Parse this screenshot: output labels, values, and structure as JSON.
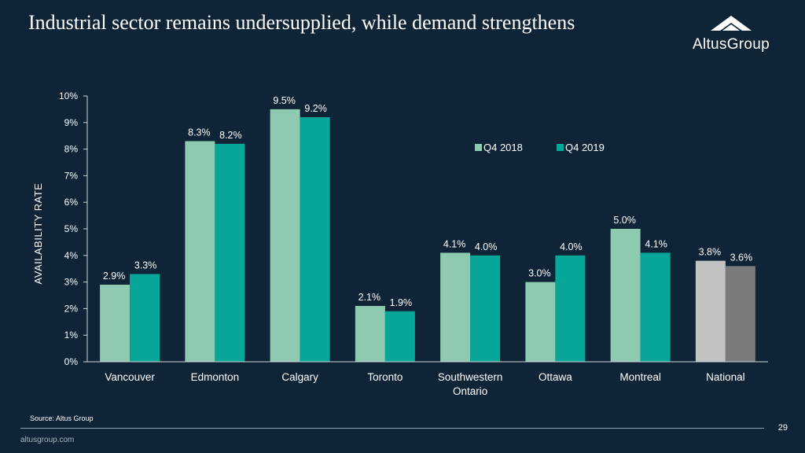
{
  "title": "Industrial sector remains undersupplied, while demand strengthens",
  "logo": {
    "text": "AltusGroup"
  },
  "chart_data": {
    "type": "bar",
    "ylabel": "AVAILABILITY RATE",
    "ylim": [
      0,
      10
    ],
    "yticks": [
      "0%",
      "1%",
      "2%",
      "3%",
      "4%",
      "5%",
      "6%",
      "7%",
      "8%",
      "9%",
      "10%"
    ],
    "categories": [
      "Vancouver",
      "Edmonton",
      "Calgary",
      "Toronto",
      "Southwestern Ontario",
      "Ottawa",
      "Montreal",
      "National"
    ],
    "category_lines": [
      [
        "Vancouver"
      ],
      [
        "Edmonton"
      ],
      [
        "Calgary"
      ],
      [
        "Toronto"
      ],
      [
        "Southwestern",
        "Ontario"
      ],
      [
        "Ottawa"
      ],
      [
        "Montreal"
      ],
      [
        "National"
      ]
    ],
    "series": [
      {
        "name": "Q4 2018",
        "color": "#8ecab0",
        "values": [
          2.9,
          8.3,
          9.5,
          2.1,
          4.1,
          3.0,
          5.0,
          3.8
        ],
        "labels": [
          "2.9%",
          "8.3%",
          "9.5%",
          "2.1%",
          "4.1%",
          "3.0%",
          "5.0%",
          "3.8%"
        ]
      },
      {
        "name": "Q4 2019",
        "color": "#07a699",
        "values": [
          3.3,
          8.2,
          9.2,
          1.9,
          4.0,
          4.0,
          4.1,
          3.6
        ],
        "labels": [
          "3.3%",
          "8.2%",
          "9.2%",
          "1.9%",
          "4.0%",
          "4.0%",
          "4.1%",
          "3.6%"
        ]
      }
    ],
    "highlight": {
      "category": "National",
      "colors": [
        "#c2c2c2",
        "#7b7b7b"
      ]
    },
    "legend_position": "top-right"
  },
  "footer": {
    "source": "Source:  Altus Group",
    "page_number": "29",
    "url": "altusgroup.com"
  }
}
